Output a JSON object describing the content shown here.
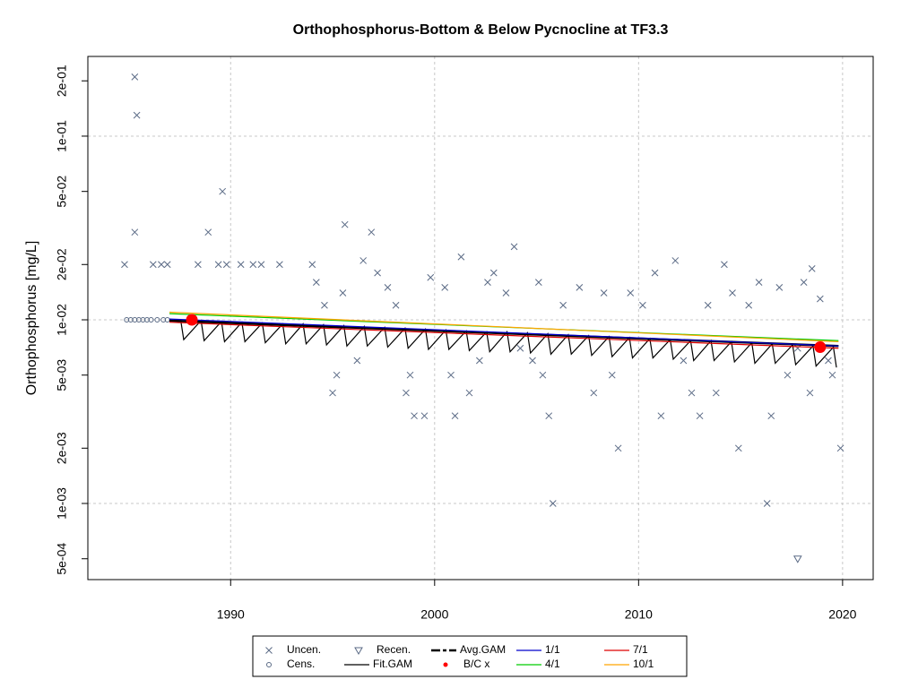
{
  "chart_data": {
    "type": "scatter-line",
    "title": "Orthophosphorus-Bottom & Below Pycnocline at TF3.3",
    "y_label": "Orthophosphorus [mg/L]",
    "log_y": true,
    "grid": "decades",
    "xlim": [
      1983.0,
      2021.5
    ],
    "xticks": [
      1990,
      2000,
      2010,
      2020
    ],
    "ylim": [
      0.000385,
      0.2716
    ],
    "yticks": [
      {
        "value": 0.0005,
        "label": "5e-04"
      },
      {
        "value": 0.001,
        "label": "1e-03"
      },
      {
        "value": 0.002,
        "label": "2e-03"
      },
      {
        "value": 0.005,
        "label": "5e-03"
      },
      {
        "value": 0.01,
        "label": "1e-02"
      },
      {
        "value": 0.02,
        "label": "2e-02"
      },
      {
        "value": 0.05,
        "label": "5e-02"
      },
      {
        "value": 0.1,
        "label": "1e-01"
      },
      {
        "value": 0.2,
        "label": "2e-01"
      }
    ],
    "legend": "bottom",
    "series": [
      {
        "name": "Uncen.",
        "mark": "x",
        "color": "#5a6a85",
        "x": [
          1984.8,
          1985.3,
          1985.4,
          1985.3,
          1986.2,
          1986.6,
          1986.9,
          1988.4,
          1988.9,
          1989.4,
          1989.6,
          1989.8,
          1990.5,
          1991.1,
          1991.5,
          1992.4,
          1994.0,
          1994.2,
          1994.6,
          1995.0,
          1995.2,
          1995.5,
          1995.6,
          1996.2,
          1996.5,
          1996.9,
          1997.2,
          1997.7,
          1998.1,
          1998.6,
          1998.8,
          1999.0,
          1999.5,
          1999.8,
          2000.5,
          2000.8,
          2001.0,
          2001.3,
          2001.7,
          2002.2,
          2002.6,
          2002.9,
          2003.5,
          2003.9,
          2004.2,
          2004.8,
          2005.1,
          2005.3,
          2005.6,
          2005.8,
          2006.3,
          2007.1,
          2007.8,
          2008.3,
          2008.7,
          2009.0,
          2009.6,
          2010.2,
          2010.8,
          2011.1,
          2011.8,
          2012.2,
          2012.6,
          2013.0,
          2013.4,
          2013.8,
          2014.2,
          2014.6,
          2014.9,
          2015.4,
          2015.9,
          2016.3,
          2016.5,
          2016.9,
          2017.3,
          2017.8,
          2018.1,
          2018.4,
          2018.5,
          2018.9,
          2019.3,
          2019.5,
          2019.9
        ],
        "values": [
          0.02,
          0.21,
          0.13,
          0.03,
          0.02,
          0.02,
          0.02,
          0.02,
          0.03,
          0.02,
          0.05,
          0.02,
          0.02,
          0.02,
          0.02,
          0.02,
          0.02,
          0.016,
          0.012,
          0.004,
          0.005,
          0.014,
          0.033,
          0.006,
          0.021,
          0.03,
          0.018,
          0.015,
          0.012,
          0.004,
          0.005,
          0.003,
          0.003,
          0.017,
          0.015,
          0.005,
          0.003,
          0.022,
          0.004,
          0.006,
          0.016,
          0.018,
          0.014,
          0.025,
          0.007,
          0.006,
          0.016,
          0.005,
          0.003,
          0.001,
          0.012,
          0.015,
          0.004,
          0.014,
          0.005,
          0.002,
          0.014,
          0.012,
          0.018,
          0.003,
          0.021,
          0.006,
          0.004,
          0.003,
          0.012,
          0.004,
          0.02,
          0.014,
          0.002,
          0.012,
          0.016,
          0.001,
          0.003,
          0.015,
          0.005,
          0.007,
          0.016,
          0.004,
          0.019,
          0.013,
          0.006,
          0.005,
          0.002
        ]
      },
      {
        "name": "Cens.",
        "mark": "circle",
        "color": "#5a6a85",
        "x": [
          1984.9,
          1985.1,
          1985.3,
          1985.5,
          1985.7,
          1985.9,
          1986.1,
          1986.4,
          1986.7,
          1986.9
        ],
        "values": [
          0.01,
          0.01,
          0.01,
          0.01,
          0.01,
          0.01,
          0.01,
          0.01,
          0.01,
          0.01
        ]
      },
      {
        "name": "Recen.",
        "mark": "triangle",
        "color": "#5a6a85",
        "x": [
          2017.8
        ],
        "values": [
          0.0005
        ]
      },
      {
        "name": "Fit.GAM",
        "mark": "line",
        "color": "#000000",
        "x": [
          1987.55,
          1987.7,
          1988.55,
          1988.7,
          1989.55,
          1989.7,
          1990.55,
          1990.7,
          1991.55,
          1991.7,
          1992.55,
          1992.7,
          1993.55,
          1993.7,
          1994.55,
          1994.7,
          1995.55,
          1995.7,
          1996.55,
          1996.7,
          1997.55,
          1997.7,
          1998.55,
          1998.7,
          1999.55,
          1999.7,
          2000.55,
          2000.7,
          2001.55,
          2001.7,
          2002.55,
          2002.7,
          2003.55,
          2003.7,
          2004.55,
          2004.7,
          2005.55,
          2005.7,
          2006.55,
          2006.7,
          2007.55,
          2007.7,
          2008.55,
          2008.7,
          2009.55,
          2009.7,
          2010.55,
          2010.7,
          2011.55,
          2011.7,
          2012.55,
          2012.7,
          2013.55,
          2013.7,
          2014.55,
          2014.7,
          2015.55,
          2015.7,
          2016.55,
          2016.7,
          2017.55,
          2017.7,
          2018.55,
          2018.7,
          2019.55,
          2019.7
        ],
        "values": [
          0.01,
          0.0078,
          0.0099,
          0.0077,
          0.0098,
          0.0076,
          0.0097,
          0.0076,
          0.0096,
          0.0075,
          0.0095,
          0.0074,
          0.0095,
          0.0074,
          0.0094,
          0.0073,
          0.0093,
          0.0072,
          0.0092,
          0.0072,
          0.0091,
          0.0071,
          0.009,
          0.007,
          0.0089,
          0.0069,
          0.0088,
          0.0069,
          0.0087,
          0.0068,
          0.0086,
          0.0067,
          0.0086,
          0.0067,
          0.0085,
          0.0066,
          0.0084,
          0.0065,
          0.0083,
          0.0065,
          0.0082,
          0.0064,
          0.0081,
          0.0063,
          0.008,
          0.0062,
          0.0079,
          0.0062,
          0.0078,
          0.0061,
          0.0077,
          0.006,
          0.0077,
          0.006,
          0.0076,
          0.0059,
          0.0075,
          0.0058,
          0.0074,
          0.0058,
          0.0073,
          0.0057,
          0.0072,
          0.0056,
          0.0071,
          0.0055
        ]
      },
      {
        "name": "Avg.GAM",
        "mark": "thick-line",
        "color": "#000000",
        "x": [
          1987.0,
          2019.8
        ],
        "values": [
          0.0099,
          0.0072
        ]
      },
      {
        "name": "B/C x",
        "mark": "dot",
        "color": "#ff0000",
        "x": [
          1988.1,
          2018.9
        ],
        "values": [
          0.01,
          0.0071
        ]
      },
      {
        "name": "1/1",
        "mark": "line",
        "color": "#0000cc",
        "x": [
          1987.0,
          2019.8
        ],
        "values": [
          0.0101,
          0.0072
        ]
      },
      {
        "name": "4/1",
        "mark": "line",
        "color": "#00cc00",
        "x": [
          1987.0,
          2019.8
        ],
        "values": [
          0.0108,
          0.0077
        ]
      },
      {
        "name": "7/1",
        "mark": "line",
        "color": "#dd0000",
        "x": [
          1987.0,
          2019.8
        ],
        "values": [
          0.0097,
          0.007
        ]
      },
      {
        "name": "10/1",
        "mark": "line",
        "color": "#ffa500",
        "x": [
          1987.0,
          2019.8
        ],
        "values": [
          0.011,
          0.0076
        ]
      }
    ]
  }
}
